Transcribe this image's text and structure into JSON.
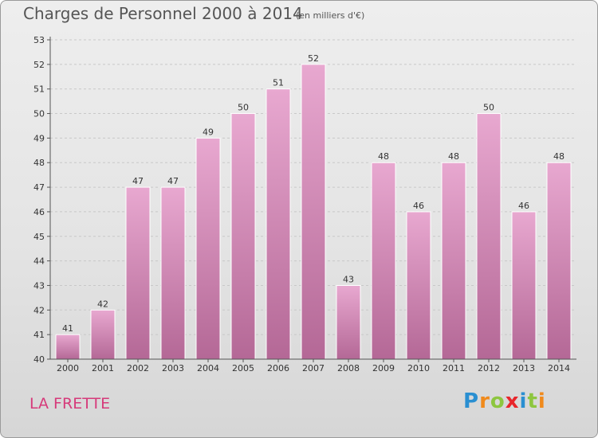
{
  "title": "Charges de Personnel 2000 à 2014",
  "unit": "(en milliers d'€)",
  "commune": "LA FRETTE",
  "logo": {
    "text": "Proxiti",
    "letters": [
      {
        "char": "P",
        "color": "#2a8fd1"
      },
      {
        "char": "r",
        "color": "#f08a1c"
      },
      {
        "char": "o",
        "color": "#8dc63f"
      },
      {
        "char": "x",
        "color": "#e8262b"
      },
      {
        "char": "i",
        "color": "#2a8fd1"
      },
      {
        "char": "t",
        "color": "#8dc63f"
      },
      {
        "char": "i",
        "color": "#f08a1c"
      }
    ]
  },
  "colors": {
    "bar_top": "#e8a8d0",
    "bar_bottom": "#b46896",
    "accent": "#d63a7a"
  },
  "chart_data": {
    "type": "bar",
    "title": "Charges de Personnel 2000 à 2014",
    "subtitle": "(en milliers d'€)",
    "xlabel": "",
    "ylabel": "",
    "categories": [
      "2000",
      "2001",
      "2002",
      "2003",
      "2004",
      "2005",
      "2006",
      "2007",
      "2008",
      "2009",
      "2010",
      "2011",
      "2012",
      "2013",
      "2014"
    ],
    "values": [
      41,
      42,
      47,
      47,
      49,
      50,
      51,
      52,
      43,
      48,
      46,
      48,
      50,
      46,
      48
    ],
    "ylim": [
      40,
      53
    ],
    "yticks": [
      40,
      41,
      42,
      43,
      44,
      45,
      46,
      47,
      48,
      49,
      50,
      51,
      52,
      53
    ],
    "grid": true
  }
}
